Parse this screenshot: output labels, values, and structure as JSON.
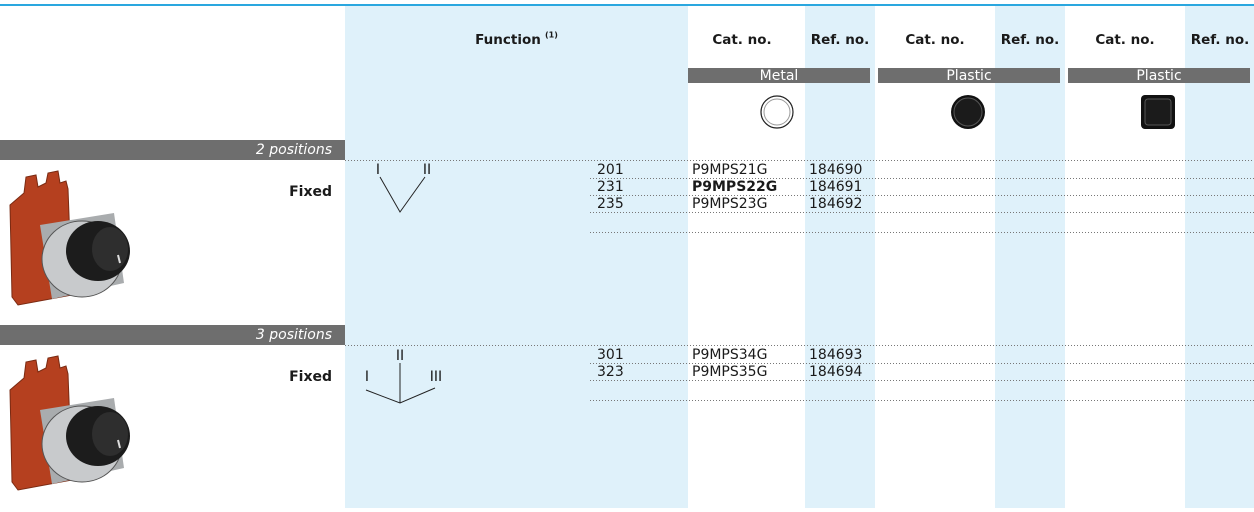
{
  "header": {
    "function": "Function",
    "function_note": "(1)",
    "columns": [
      "Cat. no.",
      "Ref. no.",
      "Cat. no.",
      "Ref. no.",
      "Cat. no.",
      "Ref. no."
    ],
    "bands": [
      "Metal",
      "Plastic",
      "Plastic"
    ]
  },
  "sections": [
    {
      "label": "2 positions",
      "mounting": "Fixed",
      "diagram": {
        "labels": [
          "I",
          "II"
        ]
      },
      "rows": [
        {
          "code": "201",
          "cat_no": "P9MPS21G",
          "ref_no": "184690"
        },
        {
          "code": "231",
          "cat_no": "P9MPS22G",
          "ref_no": "184691",
          "bold": true
        },
        {
          "code": "235",
          "cat_no": "P9MPS23G",
          "ref_no": "184692"
        }
      ]
    },
    {
      "label": "3 positions",
      "mounting": "Fixed",
      "diagram": {
        "labels": [
          "II",
          "I",
          "III"
        ]
      },
      "rows": [
        {
          "code": "301",
          "cat_no": "P9MPS34G",
          "ref_no": "184693"
        },
        {
          "code": "323",
          "cat_no": "P9MPS35G",
          "ref_no": "184694"
        }
      ]
    }
  ]
}
